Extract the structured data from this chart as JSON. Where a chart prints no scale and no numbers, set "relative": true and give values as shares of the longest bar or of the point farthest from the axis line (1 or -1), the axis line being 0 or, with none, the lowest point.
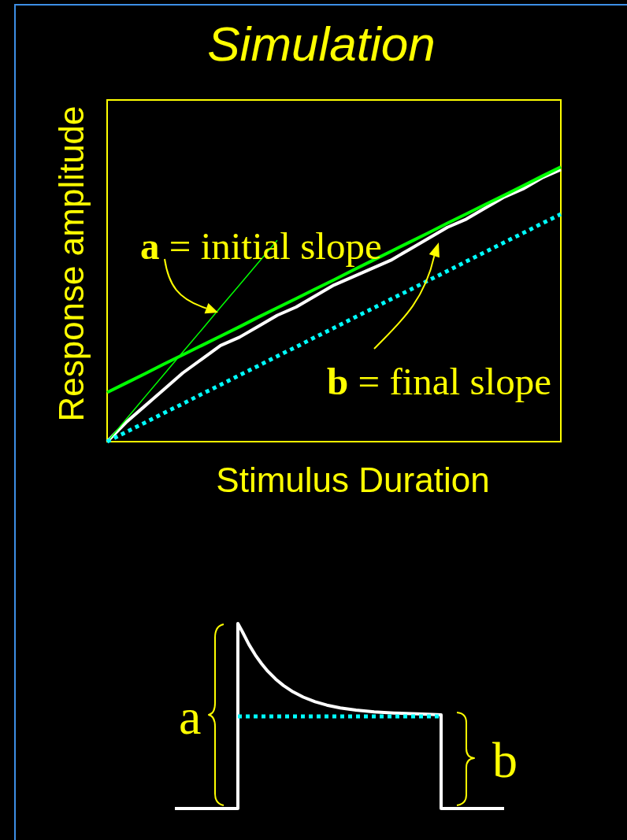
{
  "chart_data": {
    "type": "line",
    "title": "Simulation",
    "xlabel": "Stimulus Duration",
    "ylabel": "Response amplitude",
    "annotations": [
      "a = initial slope",
      "b = final slope",
      "a",
      "b"
    ],
    "relative": true,
    "categories": [
      null,
      null,
      null,
      null,
      null,
      null,
      null,
      null,
      null,
      null,
      null,
      null,
      null,
      null,
      null,
      null,
      null,
      null,
      null,
      null,
      null,
      null,
      null,
      null,
      null
    ],
    "series": [
      {
        "color": "#ffffff",
        "values": [
          0,
          0.07,
          0.13,
          0.19,
          0.25,
          0.3,
          0.35,
          0.38,
          0.42,
          0.46,
          0.49,
          0.53,
          0.57,
          0.6,
          0.63,
          0.66,
          0.7,
          0.74,
          0.78,
          0.81,
          0.85,
          0.89,
          0.92,
          0.96,
          0.99
        ]
      },
      {
        "color": "#00ff00",
        "values": [
          0.179,
          0.213,
          0.247,
          0.282,
          0.316,
          0.35,
          0.384,
          0.418,
          0.453,
          0.487,
          0.521,
          0.555,
          0.589,
          0.624,
          0.658,
          0.692,
          0.726,
          0.76,
          0.795,
          0.829,
          0.863,
          0.897,
          0.931,
          0.966,
          1
        ]
      },
      {
        "color": "#00ff00",
        "values": [
          0,
          0.081,
          0.163,
          0.244,
          0.326,
          0.407,
          0.489,
          0.57,
          0.652,
          0.733,
          null,
          null,
          null,
          null,
          null,
          null,
          null,
          null,
          null,
          null,
          null,
          null,
          null,
          null,
          null
        ]
      },
      {
        "color": "#00ffff",
        "line_style": "dotted",
        "values": [
          0,
          0.035,
          0.069,
          0.104,
          0.138,
          0.173,
          0.207,
          0.242,
          0.276,
          0.311,
          0.345,
          0.38,
          0.414,
          0.449,
          0.483,
          0.518,
          0.552,
          0.587,
          0.621,
          0.656,
          0.69,
          0.725,
          0.759,
          0.794,
          0.828
        ]
      }
    ]
  }
}
